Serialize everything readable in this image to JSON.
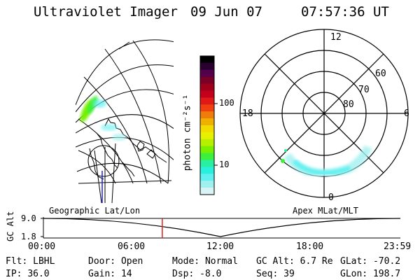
{
  "header": {
    "title": "Ultraviolet Imager",
    "date": "09 Jun 07",
    "time": "07:57:36 UT"
  },
  "colorbar": {
    "label": "photon cm⁻²s⁻¹",
    "ticks": [
      "100",
      "10"
    ],
    "colors": [
      "#000000",
      "#2a0033",
      "#55004d",
      "#7a0026",
      "#a0001a",
      "#c4001a",
      "#e01818",
      "#f04010",
      "#f07d0a",
      "#f0b000",
      "#f0dc00",
      "#e6f000",
      "#b4f000",
      "#78f000",
      "#3cf03c",
      "#28f0a0",
      "#28f0dc",
      "#60f0f0",
      "#a0f0f0",
      "#d8f4f4"
    ]
  },
  "polar_plot": {
    "mlt_labels": {
      "top": "12",
      "left": "18",
      "right": "6",
      "bottom": "0"
    },
    "mlat_labels": [
      "60",
      "70",
      "80"
    ]
  },
  "timeline": {
    "left_label": "Geographic Lat/Lon",
    "right_label": "Apex MLat/MLT",
    "axis_label": "GC Alt",
    "y_ticks": [
      "9.0",
      "1.8"
    ],
    "x_ticks": [
      "00:00",
      "06:00",
      "12:00",
      "18:00",
      "23:59"
    ],
    "current_time_fraction": 0.333
  },
  "status": {
    "row1": [
      {
        "k": "Flt:",
        "v": "LBHL"
      },
      {
        "k": "Door:",
        "v": "Open"
      },
      {
        "k": "Mode:",
        "v": "Normal"
      },
      {
        "k": "GC Alt:",
        "v": "6.7 Re"
      },
      {
        "k": "GLat:",
        "v": "-70.2"
      }
    ],
    "row2": [
      {
        "k": "IP:",
        "v": "36.0"
      },
      {
        "k": "Gain:",
        "v": "14"
      },
      {
        "k": "Dsp:",
        "v": "-8.0"
      },
      {
        "k": "Seq:",
        "v": "39"
      },
      {
        "k": "GLon:",
        "v": "198.7"
      }
    ]
  }
}
